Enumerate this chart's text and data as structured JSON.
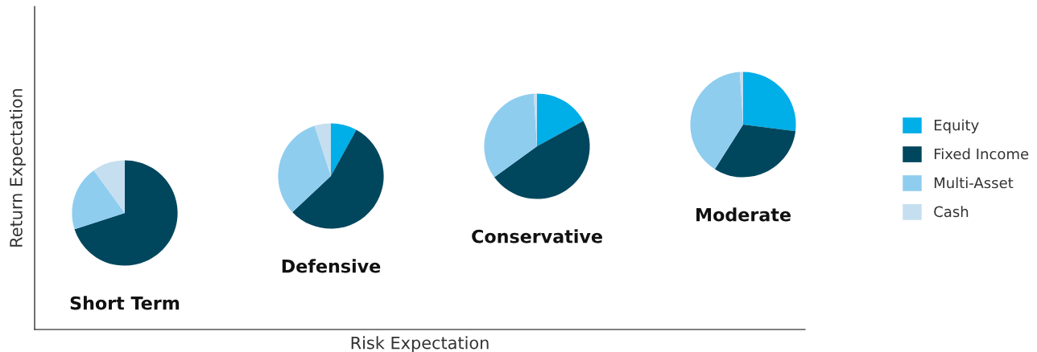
{
  "chart_data": [
    {
      "type": "other",
      "xlabel": "Risk Expectation",
      "ylabel": "Return Expectation"
    },
    {
      "type": "pie",
      "title": "Short Term",
      "categories": [
        "Equity",
        "Fixed Income",
        "Multi-Asset",
        "Cash"
      ],
      "values": [
        0,
        70,
        20,
        10
      ],
      "colors": [
        "#00aee8",
        "#00475e",
        "#8fcdef",
        "#c5dff0"
      ],
      "legend": "right"
    },
    {
      "type": "pie",
      "title": "Defensive",
      "values": [
        8,
        55,
        32,
        5
      ],
      "colors": [
        "#00aee8",
        "#00475e",
        "#8fcdef",
        "#c5dff0"
      ]
    },
    {
      "type": "pie",
      "title": "Conservative",
      "values": [
        17,
        48,
        34,
        1
      ],
      "colors": [
        "#00aee8",
        "#00475e",
        "#8fcdef",
        "#c5dff0"
      ]
    },
    {
      "type": "pie",
      "title": "Moderate",
      "values": [
        27,
        32,
        40,
        1
      ],
      "colors": [
        "#00aee8",
        "#00475e",
        "#8fcdef",
        "#c5dff0"
      ]
    }
  ]
}
